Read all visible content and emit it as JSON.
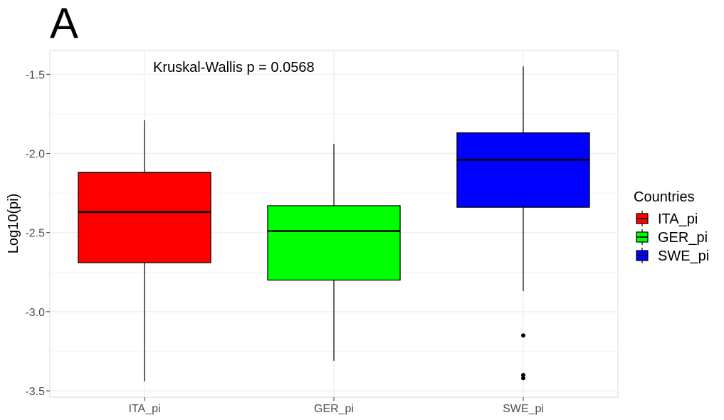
{
  "panel_tag": "A",
  "chart_data": {
    "type": "boxplot",
    "categories": [
      "ITA_pi",
      "GER_pi",
      "SWE_pi"
    ],
    "ylabel": "Log10(pi)",
    "xlabel": "",
    "ylim": [
      -3.54,
      -1.35
    ],
    "yticks": [
      -3.5,
      -3.0,
      -2.5,
      -2.0,
      -1.5
    ],
    "ytick_labels": [
      "-3.5",
      "-3.0",
      "-2.5",
      "-2.0",
      "-1.5"
    ],
    "grid": true,
    "annotation": "Kruskal-Wallis p = 0.0568",
    "legend": {
      "title": "Countries",
      "position": "right",
      "entries": [
        "ITA_pi",
        "GER_pi",
        "SWE_pi"
      ]
    },
    "boxes": [
      {
        "name": "ITA_pi",
        "color": "#ff0000",
        "whisker_low": -3.44,
        "q1": -2.69,
        "median": -2.37,
        "q3": -2.12,
        "whisker_high": -1.79,
        "outliers": []
      },
      {
        "name": "GER_pi",
        "color": "#00ff00",
        "whisker_low": -3.31,
        "q1": -2.8,
        "median": -2.49,
        "q3": -2.33,
        "whisker_high": -1.94,
        "outliers": []
      },
      {
        "name": "SWE_pi",
        "color": "#0000ff",
        "whisker_low": -2.87,
        "q1": -2.34,
        "median": -2.04,
        "q3": -1.87,
        "whisker_high": -1.45,
        "outliers": [
          -3.15,
          -3.4,
          -3.42
        ]
      }
    ]
  }
}
